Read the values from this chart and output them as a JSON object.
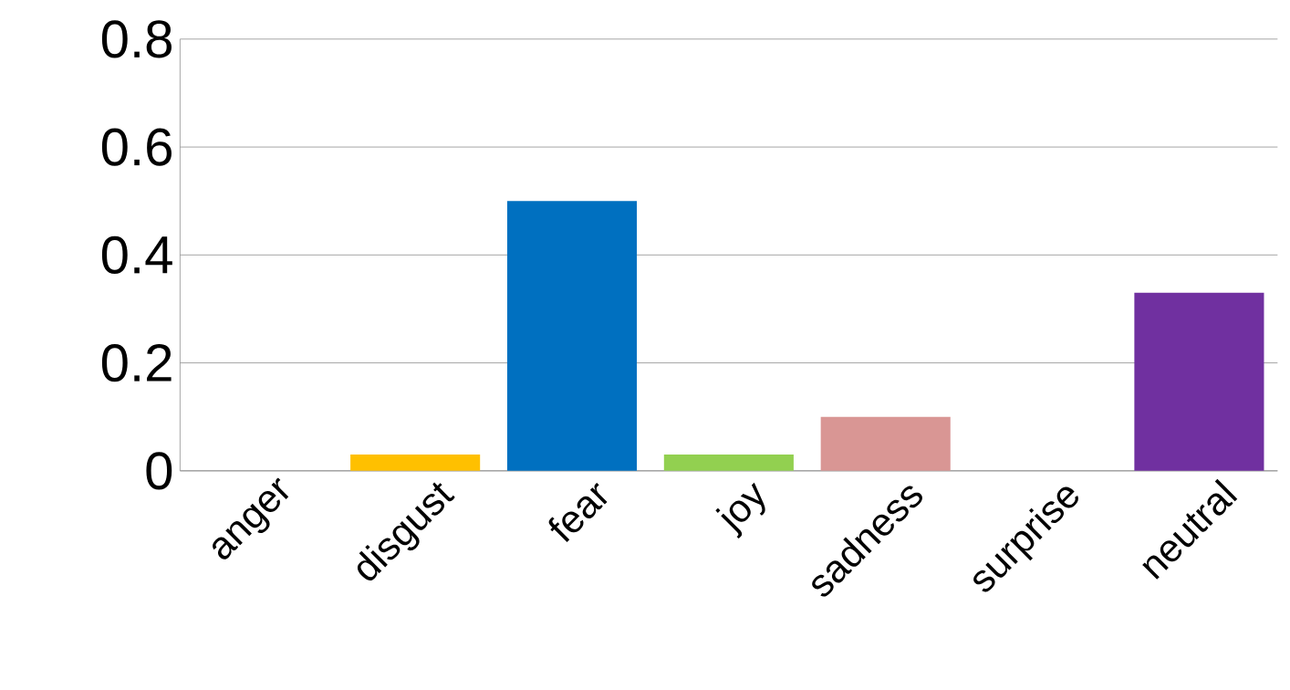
{
  "chart_data": {
    "type": "bar",
    "categories": [
      "anger",
      "disgust",
      "fear",
      "joy",
      "sadness",
      "surprise",
      "neutral"
    ],
    "values": [
      0,
      0.03,
      0.5,
      0.03,
      0.1,
      0,
      0.33
    ],
    "colors": [
      "#c00000",
      "#ffc000",
      "#0070c0",
      "#92d050",
      "#d99694",
      "#00b0f0",
      "#7030a0"
    ],
    "ylim": [
      0,
      0.8
    ],
    "yticks": [
      0,
      0.2,
      0.4,
      0.6,
      0.8
    ],
    "grid": "y"
  }
}
